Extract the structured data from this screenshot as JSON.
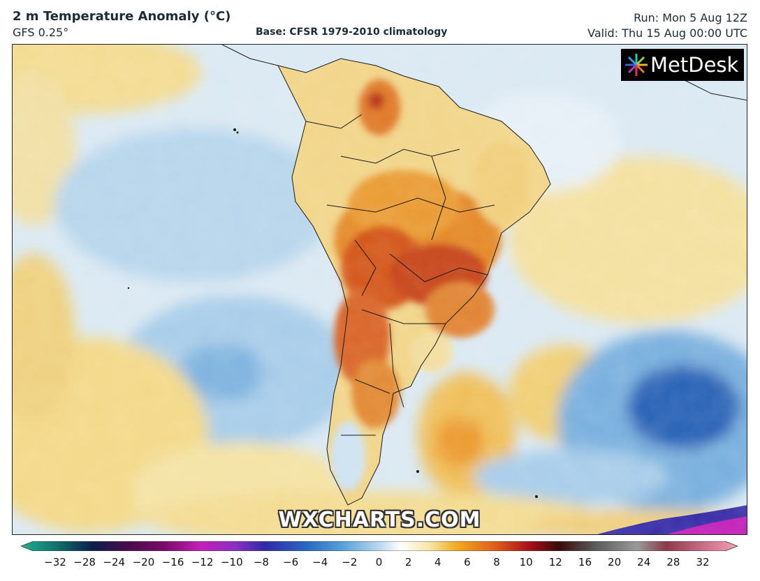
{
  "header": {
    "title": "2 m Temperature Anomaly (°C)",
    "model": "GFS 0.25°",
    "base": "Base: CFSR 1979-2010 climatology",
    "run": "Run: Mon 5 Aug 12Z",
    "valid": "Valid: Thu 15 Aug 00:00 UTC"
  },
  "logo": {
    "text": "MetDesk"
  },
  "watermark": "WXCHARTS.COM",
  "colorbar": {
    "ticks": [
      "−32",
      "−28",
      "−24",
      "−20",
      "−16",
      "−12",
      "−10",
      "−8",
      "−6",
      "−4",
      "−2",
      "0",
      "2",
      "4",
      "6",
      "8",
      "10",
      "12",
      "16",
      "20",
      "24",
      "28",
      "32"
    ],
    "colors": {
      "neg_extreme": "#1fb38f",
      "neg_deep": "#0b1f4d",
      "neg_purple": "#7a0b6a",
      "neg_magenta": "#c21fb8",
      "neg_blue": "#2a4aa8",
      "neg_mid": "#3a8ad6",
      "neg_light": "#b9d9ef",
      "neutral": "#ffffff",
      "pos_light": "#f7e6a6",
      "pos_mid": "#f0a81e",
      "pos_orange": "#e0601a",
      "pos_red": "#a8101a",
      "pos_dark": "#3a0a0a",
      "pos_grey": "#9a9a9a",
      "pos_pink": "#f2a3b6"
    }
  }
}
